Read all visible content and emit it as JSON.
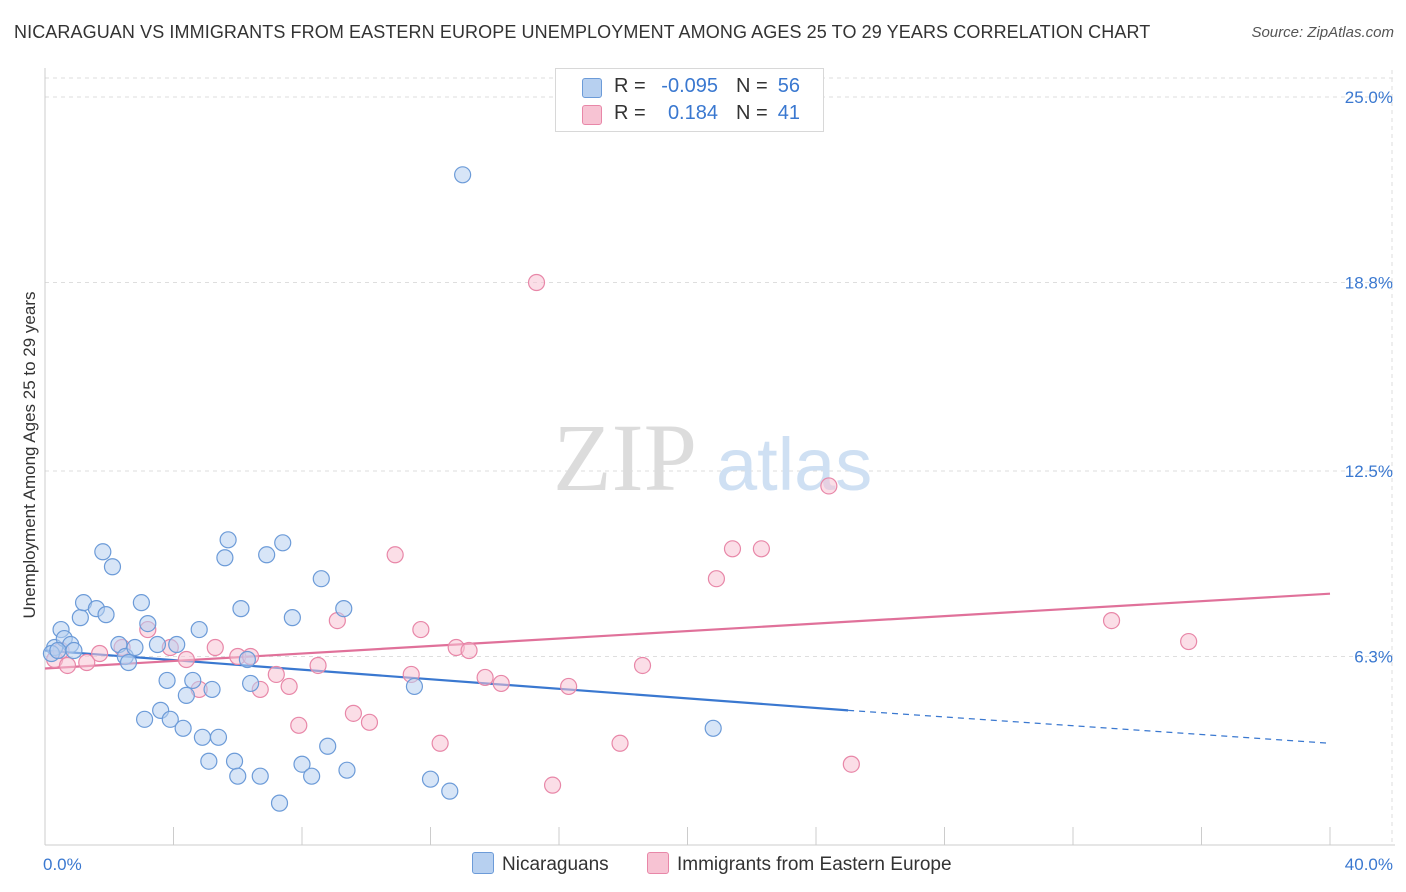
{
  "title": "NICARAGUAN VS IMMIGRANTS FROM EASTERN EUROPE UNEMPLOYMENT AMONG AGES 25 TO 29 YEARS CORRELATION CHART",
  "source": "Source: ZipAtlas.com",
  "watermark": {
    "zip": "ZIP",
    "atlas": "atlas"
  },
  "colors": {
    "blue_fill": "#b7d0f0",
    "blue_stroke": "#6c9bd8",
    "blue_line": "#3a78d0",
    "pink_fill": "#f7c3d3",
    "pink_stroke": "#e887a8",
    "pink_line": "#e0719a",
    "axis_text": "#3a78d0",
    "grid": "#dedede"
  },
  "legend_top": [
    {
      "r_label": "R =",
      "r_value": "-0.095",
      "n_label": "N =",
      "n_value": "56",
      "color": "blue"
    },
    {
      "r_label": "R =",
      "r_value": "0.184",
      "n_label": "N =",
      "n_value": "41",
      "color": "pink"
    }
  ],
  "chart_data": {
    "type": "scatter",
    "ylabel": "Unemployment Among Ages 25 to 29 years",
    "x_tick_labels": [
      "0.0%",
      "40.0%"
    ],
    "y_tick_labels": [
      "6.3%",
      "12.5%",
      "18.8%",
      "25.0%"
    ],
    "y_ticks": [
      6.3,
      12.5,
      18.8,
      25.0
    ],
    "xlim": [
      0,
      40
    ],
    "ylim": [
      0,
      25.6
    ],
    "grid": true,
    "series": [
      {
        "name": "Nicaraguans",
        "color": "blue",
        "points": [
          [
            0.3,
            6.6
          ],
          [
            0.5,
            7.2
          ],
          [
            0.6,
            6.9
          ],
          [
            0.8,
            6.7
          ],
          [
            0.9,
            6.5
          ],
          [
            1.1,
            7.6
          ],
          [
            1.2,
            8.1
          ],
          [
            1.6,
            7.9
          ],
          [
            1.8,
            9.8
          ],
          [
            1.9,
            7.7
          ],
          [
            2.1,
            9.3
          ],
          [
            2.3,
            6.7
          ],
          [
            2.5,
            6.3
          ],
          [
            2.6,
            6.1
          ],
          [
            2.8,
            6.6
          ],
          [
            3.0,
            8.1
          ],
          [
            3.1,
            4.2
          ],
          [
            3.2,
            7.4
          ],
          [
            3.5,
            6.7
          ],
          [
            3.6,
            4.5
          ],
          [
            3.8,
            5.5
          ],
          [
            3.9,
            4.2
          ],
          [
            4.1,
            6.7
          ],
          [
            4.3,
            3.9
          ],
          [
            4.4,
            5.0
          ],
          [
            4.6,
            5.5
          ],
          [
            4.8,
            7.2
          ],
          [
            4.9,
            3.6
          ],
          [
            5.1,
            2.8
          ],
          [
            5.2,
            5.2
          ],
          [
            5.4,
            3.6
          ],
          [
            5.6,
            9.6
          ],
          [
            5.7,
            10.2
          ],
          [
            5.9,
            2.8
          ],
          [
            6.0,
            2.3
          ],
          [
            6.1,
            7.9
          ],
          [
            6.3,
            6.2
          ],
          [
            6.4,
            5.4
          ],
          [
            6.7,
            2.3
          ],
          [
            6.9,
            9.7
          ],
          [
            7.3,
            1.4
          ],
          [
            7.4,
            10.1
          ],
          [
            7.7,
            7.6
          ],
          [
            8.0,
            2.7
          ],
          [
            8.3,
            2.3
          ],
          [
            8.6,
            8.9
          ],
          [
            8.8,
            3.3
          ],
          [
            9.3,
            7.9
          ],
          [
            9.4,
            2.5
          ],
          [
            11.5,
            5.3
          ],
          [
            12.0,
            2.2
          ],
          [
            12.6,
            1.8
          ],
          [
            13.0,
            22.4
          ],
          [
            20.8,
            3.9
          ],
          [
            0.2,
            6.4
          ],
          [
            0.4,
            6.5
          ]
        ],
        "trend": {
          "x": [
            0,
            25
          ],
          "y": [
            6.5,
            4.5
          ]
        },
        "trend_dashed": {
          "x": [
            25,
            40
          ],
          "y": [
            4.5,
            3.4
          ]
        }
      },
      {
        "name": "Immigrants from Eastern Europe",
        "color": "pink",
        "points": [
          [
            0.3,
            6.2
          ],
          [
            0.7,
            6.0
          ],
          [
            1.3,
            6.1
          ],
          [
            1.7,
            6.4
          ],
          [
            2.4,
            6.6
          ],
          [
            3.2,
            7.2
          ],
          [
            3.9,
            6.6
          ],
          [
            4.4,
            6.2
          ],
          [
            4.8,
            5.2
          ],
          [
            5.3,
            6.6
          ],
          [
            6.0,
            6.3
          ],
          [
            6.4,
            6.3
          ],
          [
            6.7,
            5.2
          ],
          [
            7.2,
            5.7
          ],
          [
            7.6,
            5.3
          ],
          [
            7.9,
            4.0
          ],
          [
            8.5,
            6.0
          ],
          [
            9.1,
            7.5
          ],
          [
            9.6,
            4.4
          ],
          [
            10.1,
            4.1
          ],
          [
            10.9,
            9.7
          ],
          [
            11.4,
            5.7
          ],
          [
            11.7,
            7.2
          ],
          [
            12.3,
            3.4
          ],
          [
            12.8,
            6.6
          ],
          [
            13.2,
            6.5
          ],
          [
            13.7,
            5.6
          ],
          [
            14.2,
            5.4
          ],
          [
            15.3,
            18.8
          ],
          [
            15.8,
            2.0
          ],
          [
            16.3,
            5.3
          ],
          [
            17.9,
            3.4
          ],
          [
            18.6,
            6.0
          ],
          [
            20.9,
            8.9
          ],
          [
            21.4,
            9.9
          ],
          [
            22.3,
            9.9
          ],
          [
            24.4,
            12.0
          ],
          [
            25.1,
            2.7
          ],
          [
            33.2,
            7.5
          ],
          [
            35.6,
            6.8
          ],
          [
            0.5,
            6.5
          ]
        ],
        "trend": {
          "x": [
            0,
            40
          ],
          "y": [
            5.9,
            8.4
          ]
        }
      }
    ]
  },
  "legend_bottom": [
    {
      "label": "Nicaraguans",
      "color": "blue"
    },
    {
      "label": "Immigrants from Eastern Europe",
      "color": "pink"
    }
  ]
}
